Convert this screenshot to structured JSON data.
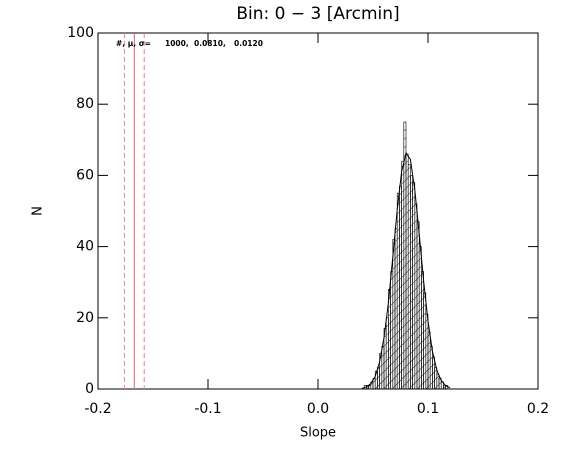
{
  "chart_data": {
    "type": "histogram",
    "title": "Bin: 0 − 3 [Arcmin]",
    "xlabel": "Slope",
    "ylabel": "N",
    "bins": [
      0.04,
      0.042,
      0.044,
      0.046,
      0.048,
      0.05,
      0.052,
      0.054,
      0.056,
      0.058,
      0.06,
      0.062,
      0.064,
      0.066,
      0.068,
      0.07,
      0.072,
      0.074,
      0.076,
      0.078,
      0.08,
      0.082,
      0.084,
      0.086,
      0.088,
      0.09,
      0.092,
      0.094,
      0.096,
      0.098,
      0.1,
      0.102,
      0.104,
      0.106,
      0.108,
      0.11,
      0.112,
      0.114,
      0.116,
      0.118,
      0.12
    ],
    "counts": [
      0,
      1,
      1,
      1,
      2,
      3,
      5,
      6,
      10,
      12,
      17,
      20,
      28,
      33,
      42,
      45,
      55,
      57,
      64,
      75,
      66,
      63,
      60,
      58,
      52,
      47,
      40,
      33,
      27,
      21,
      16,
      12,
      9,
      6,
      4,
      3,
      2,
      1,
      1,
      0
    ],
    "color": "#000000",
    "fit": {
      "x": [
        0.04,
        0.044,
        0.048,
        0.052,
        0.056,
        0.06,
        0.064,
        0.068,
        0.072,
        0.076,
        0.08,
        0.084,
        0.088,
        0.092,
        0.096,
        0.1,
        0.104,
        0.108,
        0.112,
        0.116,
        0.12
      ],
      "values": [
        0.19,
        0.58,
        1.51,
        3.5,
        7.6,
        14.4,
        24.2,
        37.1,
        50.3,
        61.0,
        66.3,
        64.5,
        56.0,
        43.6,
        30.4,
        19.1,
        10.6,
        5.3,
        2.4,
        0.95,
        0.34
      ],
      "color": "#000000"
    },
    "reference_lines": [
      {
        "x": -0.167,
        "style": "solid",
        "color": "#e06070"
      },
      {
        "x": -0.176,
        "style": "dashed",
        "color": "#f08090"
      },
      {
        "x": -0.158,
        "style": "dashed",
        "color": "#f08090"
      }
    ],
    "annotation": {
      "label": "#, μ, σ=",
      "values": [
        "1000,",
        "0.0810,",
        "0.0120"
      ]
    },
    "xlim": [
      -0.2,
      0.2
    ],
    "xticks": [
      -0.2,
      -0.1,
      {
        "value": 0,
        "label": "0.0"
      },
      0.1,
      0.2
    ],
    "ylim": [
      0,
      100
    ],
    "yticks": [
      0,
      20,
      40,
      60,
      80,
      100
    ]
  }
}
